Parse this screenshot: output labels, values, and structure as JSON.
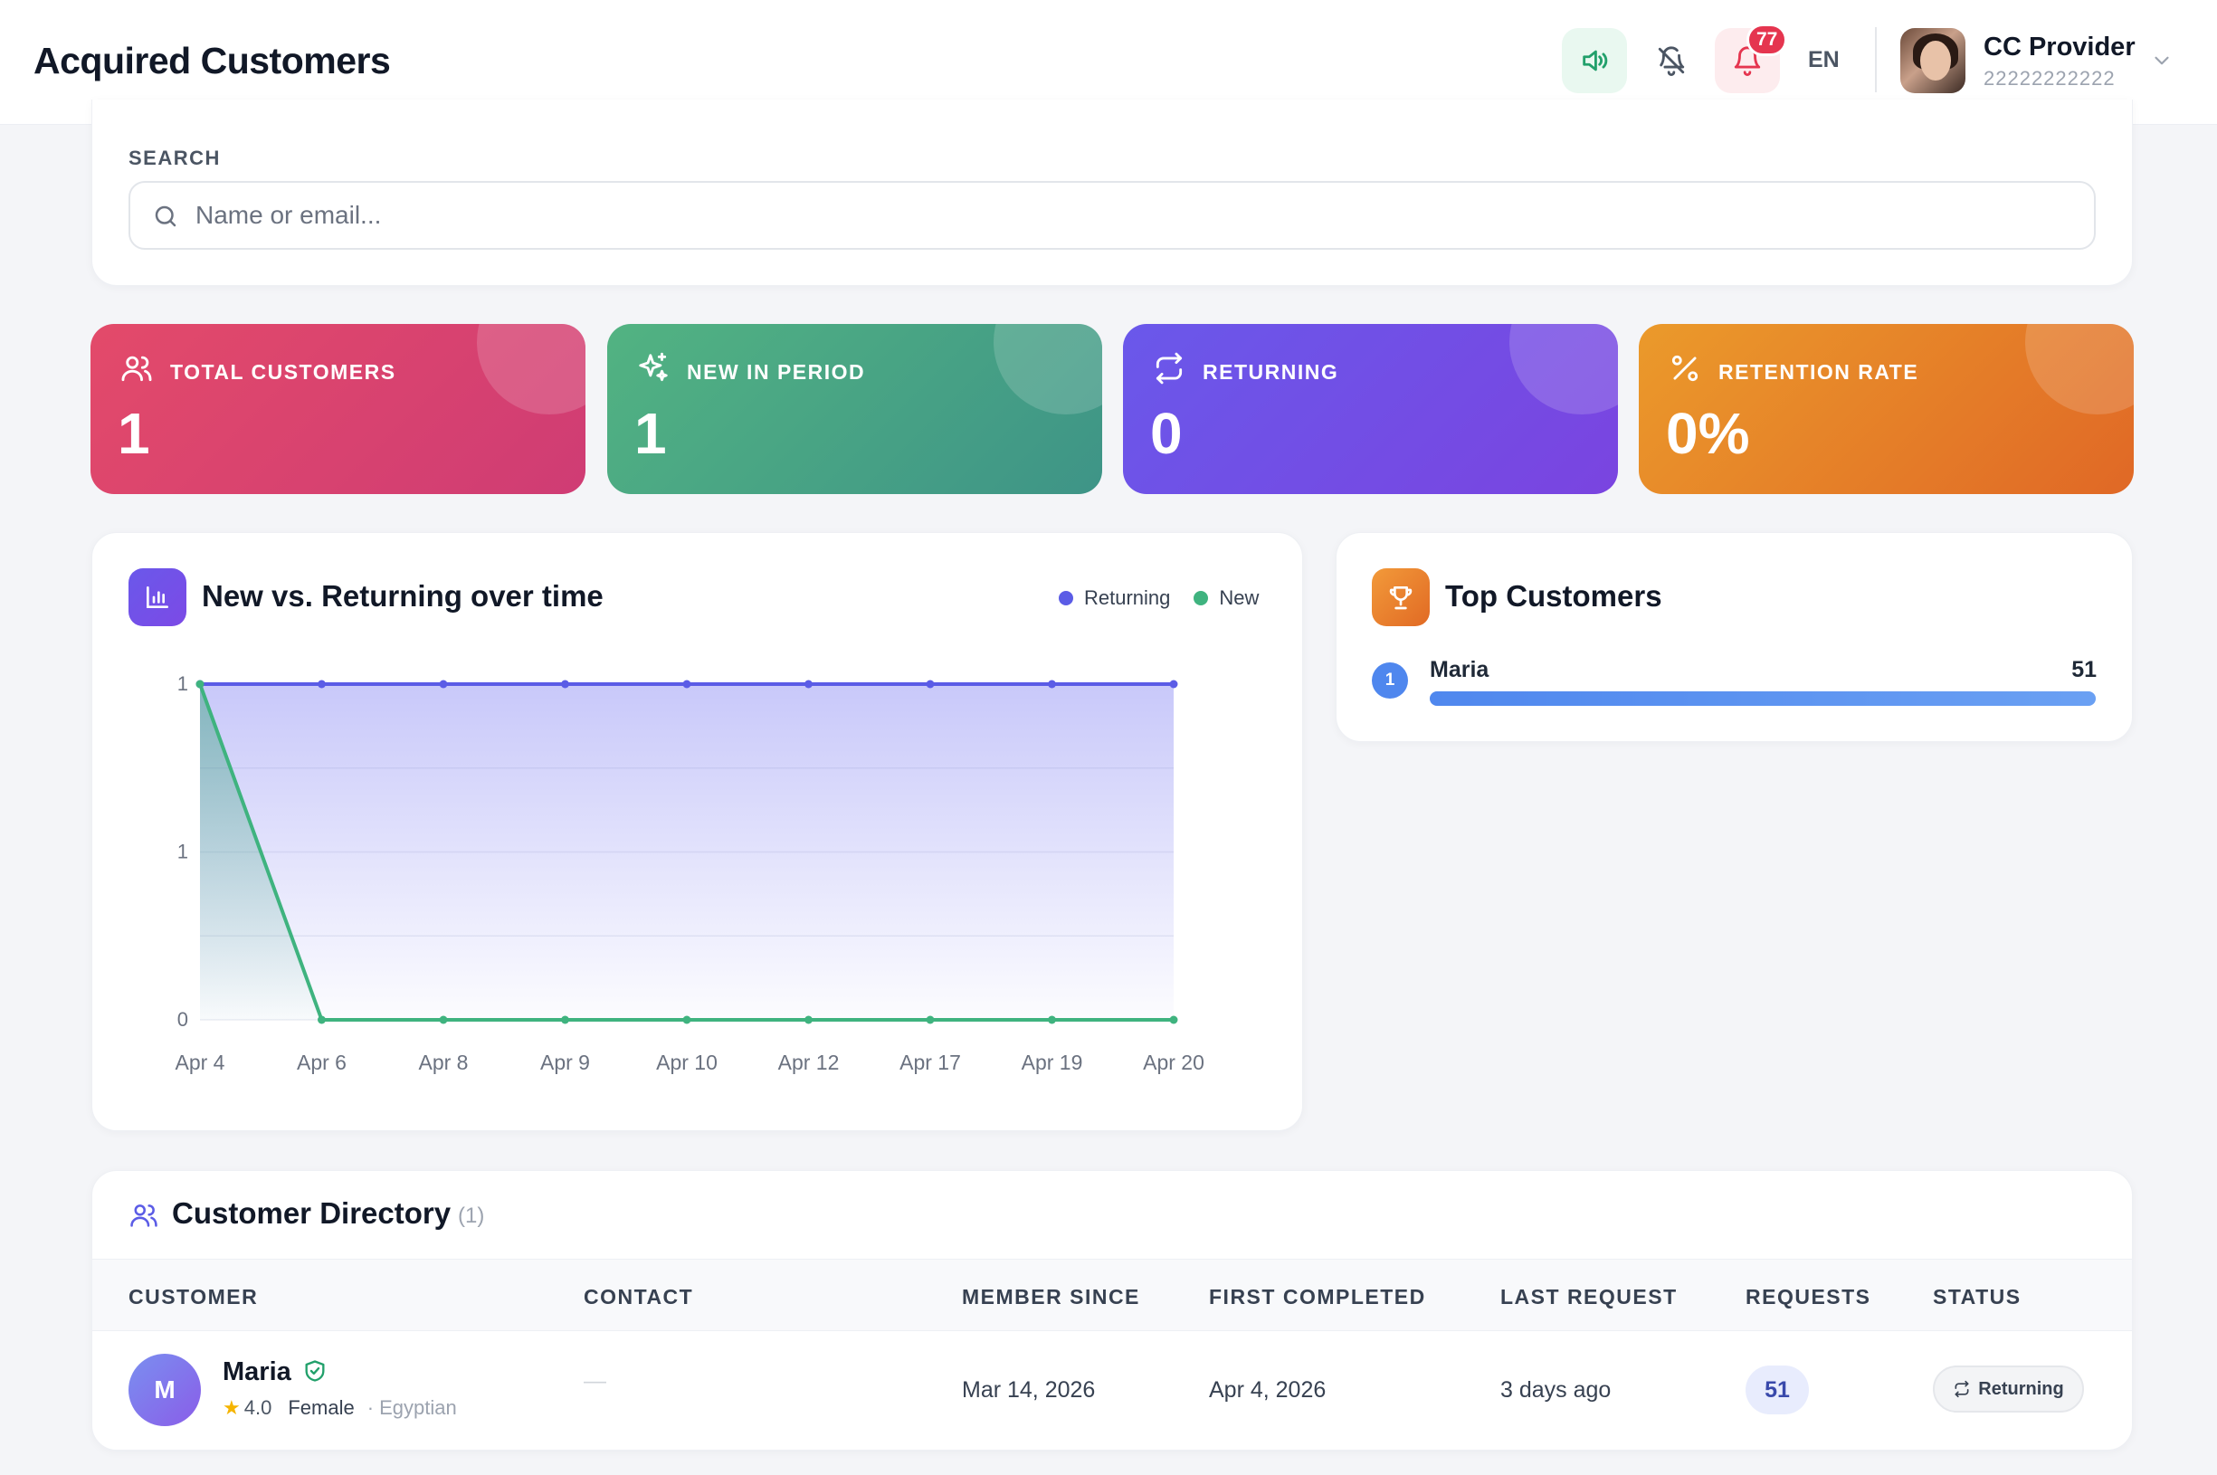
{
  "header": {
    "title": "Acquired Customers",
    "notifications_count": "77",
    "language": "EN",
    "user_name": "CC Provider",
    "user_id": "22222222222"
  },
  "search": {
    "label": "SEARCH",
    "placeholder": "Name or email..."
  },
  "stats": [
    {
      "label": "TOTAL CUSTOMERS",
      "value": "1",
      "icon": "users-icon",
      "color": "#d9436f"
    },
    {
      "label": "NEW IN PERIOD",
      "value": "1",
      "icon": "sparkles-icon",
      "color": "#4aa485"
    },
    {
      "label": "RETURNING",
      "value": "0",
      "icon": "repeat-icon",
      "color": "#704fe6"
    },
    {
      "label": "RETENTION RATE",
      "value": "0%",
      "icon": "percent-icon",
      "color": "#e67f29"
    }
  ],
  "chart": {
    "title": "New vs. Returning over time",
    "legend": [
      {
        "name": "Returning",
        "color": "#5b5ce6"
      },
      {
        "name": "New",
        "color": "#3fb37f"
      }
    ]
  },
  "chart_data": {
    "type": "area",
    "title": "New vs. Returning over time",
    "categories": [
      "Apr 4",
      "Apr 6",
      "Apr 8",
      "Apr 9",
      "Apr 10",
      "Apr 12",
      "Apr 17",
      "Apr 19",
      "Apr 20"
    ],
    "series": [
      {
        "name": "Returning",
        "values": [
          1,
          1,
          1,
          1,
          1,
          1,
          1,
          1,
          1
        ],
        "color": "#5b5ce6"
      },
      {
        "name": "New",
        "values": [
          1,
          0,
          0,
          0,
          0,
          0,
          0,
          0,
          0
        ],
        "color": "#3fb37f"
      }
    ],
    "y_ticks": [
      "1",
      "1",
      "0"
    ],
    "ylim": [
      0,
      1
    ],
    "grid": true,
    "legend_position": "top-right"
  },
  "top_customers": {
    "title": "Top Customers",
    "items": [
      {
        "rank": "1",
        "name": "Maria",
        "count": "51",
        "share": 1.0
      }
    ]
  },
  "directory": {
    "title": "Customer Directory",
    "count": "(1)",
    "columns": [
      "CUSTOMER",
      "CONTACT",
      "MEMBER SINCE",
      "FIRST COMPLETED",
      "LAST REQUEST",
      "REQUESTS",
      "STATUS"
    ],
    "rows": [
      {
        "initial": "M",
        "name": "Maria",
        "rating": "4.0",
        "gender": "Female",
        "nationality": "· Egyptian",
        "contact": "—",
        "member_since": "Mar 14, 2026",
        "first_completed": "Apr 4, 2026",
        "last_request": "3 days ago",
        "requests": "51",
        "status": "Returning"
      }
    ]
  }
}
